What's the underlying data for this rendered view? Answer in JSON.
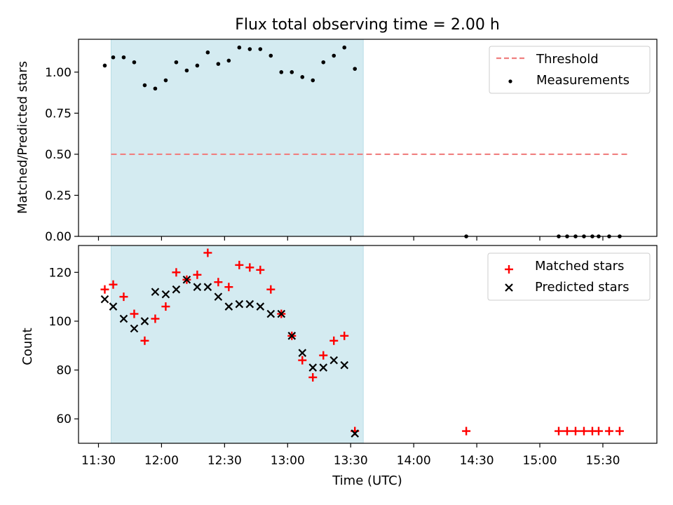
{
  "chart_data": [
    {
      "type": "scatter",
      "title": "Flux total observing time = 2.00 h",
      "ylabel": "Matched/Predicted stars",
      "xlabel": "",
      "ylim": [
        0,
        1.2
      ],
      "yticks": [
        "0.00",
        "0.25",
        "0.50",
        "0.75",
        "1.00"
      ],
      "ytick_values": [
        0,
        0.25,
        0.5,
        0.75,
        1.0
      ],
      "grid": false,
      "legend_position": "top-right",
      "shaded_span": {
        "from": "11:36",
        "to": "13:36",
        "color": "#d4ebf1"
      },
      "threshold": {
        "name": "Threshold",
        "value": 0.5,
        "from": "11:36",
        "to": "15:43",
        "color": "#f08080"
      },
      "series": [
        {
          "name": "Measurements",
          "color": "#000000",
          "marker": "dot",
          "x": [
            "11:33",
            "11:37",
            "11:42",
            "11:47",
            "11:52",
            "11:57",
            "12:02",
            "12:07",
            "12:12",
            "12:17",
            "12:22",
            "12:27",
            "12:32",
            "12:37",
            "12:42",
            "12:47",
            "12:52",
            "12:57",
            "13:02",
            "13:07",
            "13:12",
            "13:17",
            "13:22",
            "13:27",
            "13:32",
            "14:25",
            "15:09",
            "15:13",
            "15:17",
            "15:21",
            "15:25",
            "15:28",
            "15:33",
            "15:38"
          ],
          "y": [
            1.04,
            1.09,
            1.09,
            1.06,
            0.92,
            0.9,
            0.95,
            1.06,
            1.01,
            1.04,
            1.12,
            1.05,
            1.07,
            1.15,
            1.14,
            1.14,
            1.1,
            1.0,
            1.0,
            0.97,
            0.95,
            1.06,
            1.1,
            1.15,
            1.02,
            0,
            0,
            0,
            0,
            0,
            0,
            0,
            0,
            0
          ]
        }
      ]
    },
    {
      "type": "scatter",
      "title": "",
      "ylabel": "Count",
      "xlabel": "Time (UTC)",
      "ylim": [
        50,
        131
      ],
      "yticks": [
        "60",
        "80",
        "100",
        "120"
      ],
      "ytick_values": [
        60,
        80,
        100,
        120
      ],
      "xticks": [
        "11:30",
        "12:00",
        "12:30",
        "13:00",
        "13:30",
        "14:00",
        "14:30",
        "15:00",
        "15:30"
      ],
      "grid": false,
      "legend_position": "top-right",
      "shaded_span": {
        "from": "11:36",
        "to": "13:36",
        "color": "#d4ebf1"
      },
      "series": [
        {
          "name": "Matched stars",
          "color": "#ff0000",
          "marker": "plus",
          "x": [
            "11:33",
            "11:37",
            "11:42",
            "11:47",
            "11:52",
            "11:57",
            "12:02",
            "12:07",
            "12:12",
            "12:17",
            "12:22",
            "12:27",
            "12:32",
            "12:37",
            "12:42",
            "12:47",
            "12:52",
            "12:57",
            "13:02",
            "13:07",
            "13:12",
            "13:17",
            "13:22",
            "13:27",
            "13:32",
            "14:25",
            "15:09",
            "15:13",
            "15:17",
            "15:21",
            "15:25",
            "15:28",
            "15:33",
            "15:38"
          ],
          "y": [
            113,
            115,
            110,
            103,
            92,
            101,
            106,
            120,
            117,
            119,
            128,
            116,
            114,
            123,
            122,
            121,
            113,
            103,
            94,
            84,
            77,
            86,
            92,
            94,
            55,
            55,
            55,
            55,
            55,
            55,
            55,
            55,
            55,
            55
          ]
        },
        {
          "name": "Predicted stars",
          "color": "#000000",
          "marker": "x",
          "x": [
            "11:33",
            "11:37",
            "11:42",
            "11:47",
            "11:52",
            "11:57",
            "12:02",
            "12:07",
            "12:12",
            "12:17",
            "12:22",
            "12:27",
            "12:32",
            "12:37",
            "12:42",
            "12:47",
            "12:52",
            "12:57",
            "13:02",
            "13:07",
            "13:12",
            "13:17",
            "13:22",
            "13:27",
            "13:32"
          ],
          "y": [
            109,
            106,
            101,
            97,
            100,
            112,
            111,
            113,
            117,
            114,
            114,
            110,
            106,
            107,
            107,
            106,
            103,
            103,
            94,
            87,
            81,
            81,
            84,
            82,
            54
          ]
        }
      ]
    }
  ]
}
